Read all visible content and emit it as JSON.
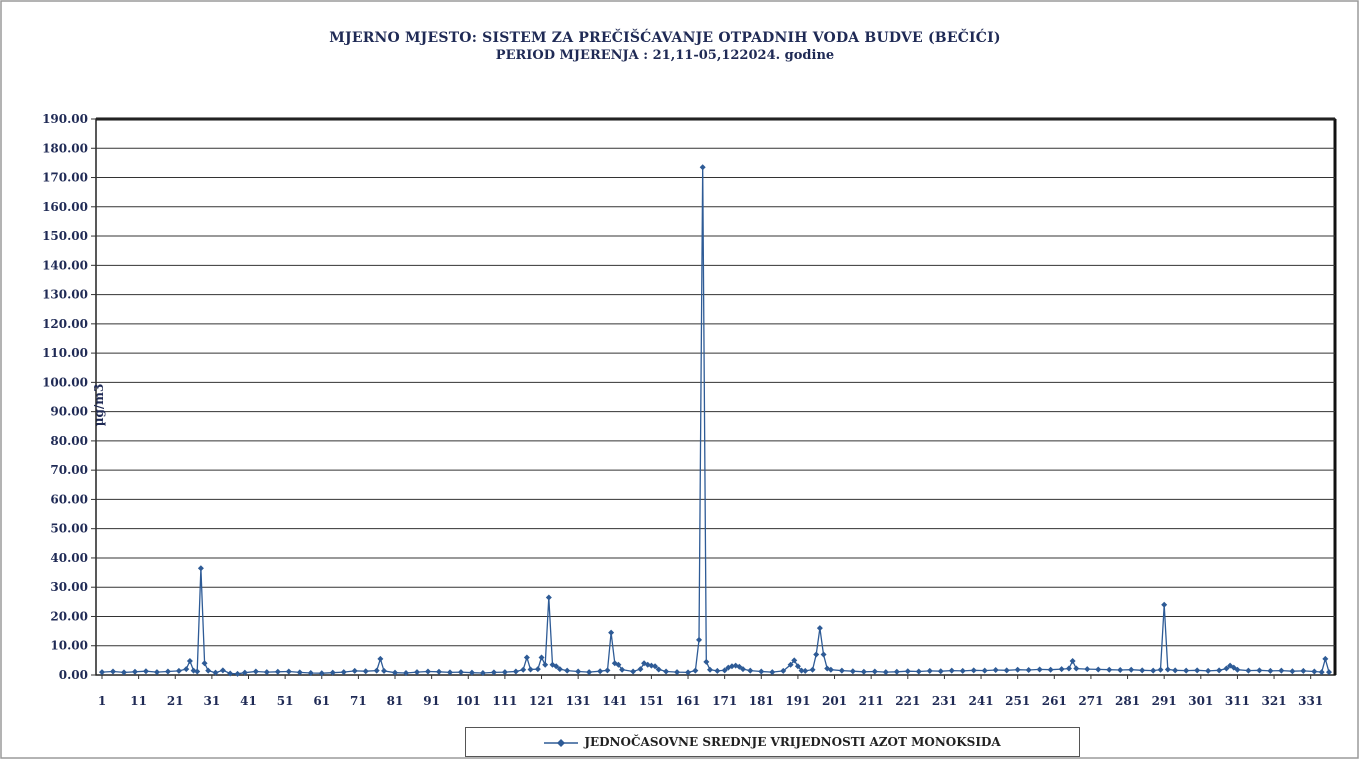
{
  "chart_data": {
    "type": "line",
    "title": "MJERNO MJESTO: SISTEM  ZA PREČIŠĆAVANJE  OTPADNIH VODA BUDVE (BEČIĆI)",
    "subtitle": "PERIOD MJERENJA : 21,11-05,122024.  godine",
    "ylabel": "µg/m3",
    "xlabel": "",
    "ylim": [
      0,
      190
    ],
    "xlim": [
      1,
      336
    ],
    "grid": true,
    "legend_position": "bottom",
    "y_ticks": [
      "0.00",
      "10.00",
      "20.00",
      "30.00",
      "40.00",
      "50.00",
      "60.00",
      "70.00",
      "80.00",
      "90.00",
      "100.00",
      "110.00",
      "120.00",
      "130.00",
      "140.00",
      "150.00",
      "160.00",
      "170.00",
      "180.00",
      "190.00"
    ],
    "x_ticks": [
      "1",
      "11",
      "21",
      "31",
      "41",
      "51",
      "61",
      "71",
      "81",
      "91",
      "101",
      "111",
      "121",
      "131",
      "141",
      "151",
      "161",
      "171",
      "181",
      "191",
      "201",
      "211",
      "221",
      "231",
      "241",
      "251",
      "261",
      "271",
      "281",
      "291",
      "301",
      "311",
      "321",
      "331"
    ],
    "series": [
      {
        "name": "JEDNOČASOVNE SREDNJE VRIJEDNOSTI AZOT MONOKSIDA",
        "color": "#2e5b96",
        "points": [
          [
            1,
            1.0
          ],
          [
            4,
            1.2
          ],
          [
            7,
            0.9
          ],
          [
            10,
            1.1
          ],
          [
            13,
            1.3
          ],
          [
            16,
            1.0
          ],
          [
            19,
            1.2
          ],
          [
            22,
            1.4
          ],
          [
            24,
            2.0
          ],
          [
            25,
            4.8
          ],
          [
            26,
            1.5
          ],
          [
            27,
            1.2
          ],
          [
            28,
            36.5
          ],
          [
            29,
            4.0
          ],
          [
            30,
            1.5
          ],
          [
            32,
            0.8
          ],
          [
            34,
            1.6
          ],
          [
            36,
            0.5
          ],
          [
            38,
            0.4
          ],
          [
            40,
            0.8
          ],
          [
            43,
            1.2
          ],
          [
            46,
            1.0
          ],
          [
            49,
            1.1
          ],
          [
            52,
            1.2
          ],
          [
            55,
            0.9
          ],
          [
            58,
            0.7
          ],
          [
            61,
            0.6
          ],
          [
            64,
            0.8
          ],
          [
            67,
            1.0
          ],
          [
            70,
            1.4
          ],
          [
            73,
            1.3
          ],
          [
            76,
            1.5
          ],
          [
            77,
            5.5
          ],
          [
            78,
            1.4
          ],
          [
            81,
            0.8
          ],
          [
            84,
            0.7
          ],
          [
            87,
            1.0
          ],
          [
            90,
            1.2
          ],
          [
            93,
            1.1
          ],
          [
            96,
            0.9
          ],
          [
            99,
            1.0
          ],
          [
            102,
            0.8
          ],
          [
            105,
            0.7
          ],
          [
            108,
            0.9
          ],
          [
            111,
            1.0
          ],
          [
            114,
            1.2
          ],
          [
            116,
            1.8
          ],
          [
            117,
            6.0
          ],
          [
            118,
            1.9
          ],
          [
            120,
            2.0
          ],
          [
            121,
            6.0
          ],
          [
            122,
            3.5
          ],
          [
            123,
            26.5
          ],
          [
            124,
            3.5
          ],
          [
            125,
            3.0
          ],
          [
            126,
            2.0
          ],
          [
            128,
            1.5
          ],
          [
            131,
            1.2
          ],
          [
            134,
            1.0
          ],
          [
            137,
            1.3
          ],
          [
            139,
            1.6
          ],
          [
            140,
            14.5
          ],
          [
            141,
            4.0
          ],
          [
            142,
            3.5
          ],
          [
            143,
            1.8
          ],
          [
            146,
            1.2
          ],
          [
            148,
            2.0
          ],
          [
            149,
            4.0
          ],
          [
            150,
            3.5
          ],
          [
            151,
            3.2
          ],
          [
            152,
            3.0
          ],
          [
            153,
            1.9
          ],
          [
            155,
            1.2
          ],
          [
            158,
            1.0
          ],
          [
            161,
            0.9
          ],
          [
            163,
            1.5
          ],
          [
            164,
            12.0
          ],
          [
            165,
            173.5
          ],
          [
            166,
            4.5
          ],
          [
            167,
            1.8
          ],
          [
            169,
            1.4
          ],
          [
            171,
            1.6
          ],
          [
            172,
            2.5
          ],
          [
            173,
            3.0
          ],
          [
            174,
            3.2
          ],
          [
            175,
            2.8
          ],
          [
            176,
            2.0
          ],
          [
            178,
            1.5
          ],
          [
            181,
            1.2
          ],
          [
            184,
            1.0
          ],
          [
            187,
            1.4
          ],
          [
            189,
            3.5
          ],
          [
            190,
            5.0
          ],
          [
            191,
            3.0
          ],
          [
            192,
            1.5
          ],
          [
            193,
            1.4
          ],
          [
            195,
            1.8
          ],
          [
            196,
            7.0
          ],
          [
            197,
            16.0
          ],
          [
            198,
            7.0
          ],
          [
            199,
            2.2
          ],
          [
            200,
            1.8
          ],
          [
            203,
            1.5
          ],
          [
            206,
            1.3
          ],
          [
            209,
            1.1
          ],
          [
            212,
            1.2
          ],
          [
            215,
            1.0
          ],
          [
            218,
            1.1
          ],
          [
            221,
            1.3
          ],
          [
            224,
            1.2
          ],
          [
            227,
            1.4
          ],
          [
            230,
            1.3
          ],
          [
            233,
            1.5
          ],
          [
            236,
            1.4
          ],
          [
            239,
            1.6
          ],
          [
            242,
            1.5
          ],
          [
            245,
            1.7
          ],
          [
            248,
            1.6
          ],
          [
            251,
            1.8
          ],
          [
            254,
            1.7
          ],
          [
            257,
            1.9
          ],
          [
            260,
            1.8
          ],
          [
            263,
            2.0
          ],
          [
            265,
            2.2
          ],
          [
            266,
            4.8
          ],
          [
            267,
            2.2
          ],
          [
            270,
            2.0
          ],
          [
            273,
            1.9
          ],
          [
            276,
            1.8
          ],
          [
            279,
            1.7
          ],
          [
            282,
            1.8
          ],
          [
            285,
            1.6
          ],
          [
            288,
            1.5
          ],
          [
            290,
            1.8
          ],
          [
            291,
            24.0
          ],
          [
            292,
            1.9
          ],
          [
            294,
            1.6
          ],
          [
            297,
            1.5
          ],
          [
            300,
            1.6
          ],
          [
            303,
            1.4
          ],
          [
            306,
            1.6
          ],
          [
            308,
            2.2
          ],
          [
            309,
            3.2
          ],
          [
            310,
            2.5
          ],
          [
            311,
            1.8
          ],
          [
            314,
            1.5
          ],
          [
            317,
            1.6
          ],
          [
            320,
            1.4
          ],
          [
            323,
            1.5
          ],
          [
            326,
            1.3
          ],
          [
            329,
            1.4
          ],
          [
            332,
            1.2
          ],
          [
            334,
            1.0
          ],
          [
            335,
            5.5
          ],
          [
            336,
            1.0
          ]
        ]
      }
    ]
  }
}
